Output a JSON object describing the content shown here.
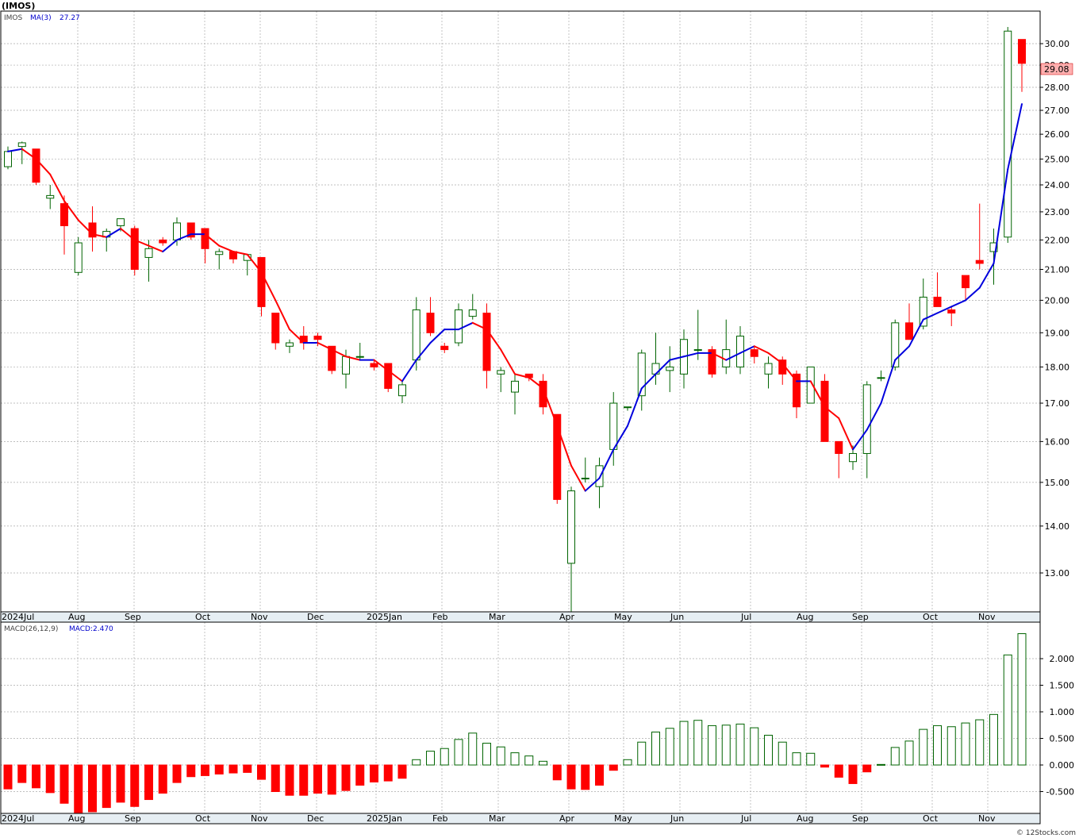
{
  "title": "(IMOS)",
  "legend": {
    "symbol": "IMOS",
    "ma_label": "MA(3)",
    "ma_value": "27.27",
    "macd_params": "MACD(26,12,9)",
    "macd_value": "MACD:2.470"
  },
  "last_price": "29.08",
  "footer": "© 12Stocks.com",
  "colors": {
    "up": "#006400",
    "down": "#ff0000",
    "ma_up": "#0000dd",
    "ma_down": "#ff0000",
    "price_box": "#ffb0b0"
  },
  "month_labels": [
    "2024Jul",
    "Aug",
    "Sep",
    "Oct",
    "Nov",
    "Dec",
    "2025Jan",
    "Feb",
    "Mar",
    "Apr",
    "May",
    "Jun",
    "Jul",
    "Aug",
    "Sep",
    "Oct",
    "Nov"
  ],
  "price_ticks": [
    "13.00",
    "14.00",
    "15.00",
    "16.00",
    "17.00",
    "18.00",
    "19.00",
    "20.00",
    "21.00",
    "22.00",
    "23.00",
    "24.00",
    "25.00",
    "26.00",
    "27.00",
    "28.00",
    "29.00",
    "30.00"
  ],
  "macd_ticks": [
    "-0.500",
    "0.000",
    "0.500",
    "1.000",
    "1.500",
    "2.000"
  ],
  "chart_data": {
    "type": "candlestick",
    "scale": "log",
    "interval": "weekly",
    "ylim": [
      12.2,
      31.2
    ],
    "candles": [
      {
        "o": 24.7,
        "h": 25.5,
        "l": 24.6,
        "c": 25.3
      },
      {
        "o": 25.5,
        "h": 25.7,
        "l": 24.8,
        "c": 25.65
      },
      {
        "o": 25.4,
        "h": 25.4,
        "l": 24.0,
        "c": 24.1
      },
      {
        "o": 23.5,
        "h": 24.0,
        "l": 23.1,
        "c": 23.6
      },
      {
        "o": 23.3,
        "h": 23.6,
        "l": 21.5,
        "c": 22.5
      },
      {
        "o": 20.9,
        "h": 22.1,
        "l": 20.8,
        "c": 21.9
      },
      {
        "o": 22.6,
        "h": 23.2,
        "l": 21.6,
        "c": 22.1
      },
      {
        "o": 22.1,
        "h": 22.4,
        "l": 21.6,
        "c": 22.3
      },
      {
        "o": 22.5,
        "h": 22.75,
        "l": 22.3,
        "c": 22.75
      },
      {
        "o": 22.4,
        "h": 22.5,
        "l": 20.8,
        "c": 21.0
      },
      {
        "o": 21.4,
        "h": 22.0,
        "l": 20.6,
        "c": 21.7
      },
      {
        "o": 22.0,
        "h": 22.1,
        "l": 21.8,
        "c": 21.9
      },
      {
        "o": 22.0,
        "h": 22.8,
        "l": 21.8,
        "c": 22.6
      },
      {
        "o": 22.6,
        "h": 22.6,
        "l": 22.0,
        "c": 22.1
      },
      {
        "o": 22.4,
        "h": 22.4,
        "l": 21.2,
        "c": 21.7
      },
      {
        "o": 21.5,
        "h": 21.7,
        "l": 21.0,
        "c": 21.6
      },
      {
        "o": 21.6,
        "h": 21.6,
        "l": 21.2,
        "c": 21.35
      },
      {
        "o": 21.3,
        "h": 21.5,
        "l": 20.8,
        "c": 21.5
      },
      {
        "o": 21.4,
        "h": 21.4,
        "l": 19.5,
        "c": 19.8
      },
      {
        "o": 19.6,
        "h": 19.6,
        "l": 18.5,
        "c": 18.7
      },
      {
        "o": 18.6,
        "h": 18.8,
        "l": 18.4,
        "c": 18.7
      },
      {
        "o": 18.9,
        "h": 19.2,
        "l": 18.5,
        "c": 18.7
      },
      {
        "o": 18.9,
        "h": 19.0,
        "l": 18.6,
        "c": 18.8
      },
      {
        "o": 18.6,
        "h": 18.6,
        "l": 17.8,
        "c": 17.9
      },
      {
        "o": 17.8,
        "h": 18.5,
        "l": 17.4,
        "c": 18.3
      },
      {
        "o": 18.3,
        "h": 18.7,
        "l": 18.2,
        "c": 18.3
      },
      {
        "o": 18.1,
        "h": 18.2,
        "l": 17.9,
        "c": 18.0
      },
      {
        "o": 18.1,
        "h": 18.1,
        "l": 17.3,
        "c": 17.4
      },
      {
        "o": 17.2,
        "h": 17.6,
        "l": 17.0,
        "c": 17.5
      },
      {
        "o": 18.2,
        "h": 20.1,
        "l": 17.9,
        "c": 19.7
      },
      {
        "o": 19.6,
        "h": 20.1,
        "l": 18.9,
        "c": 19.0
      },
      {
        "o": 18.6,
        "h": 18.7,
        "l": 18.4,
        "c": 18.5
      },
      {
        "o": 18.7,
        "h": 19.9,
        "l": 18.6,
        "c": 19.7
      },
      {
        "o": 19.5,
        "h": 20.2,
        "l": 19.4,
        "c": 19.7
      },
      {
        "o": 19.6,
        "h": 19.9,
        "l": 17.4,
        "c": 17.9
      },
      {
        "o": 17.8,
        "h": 18.0,
        "l": 17.3,
        "c": 17.9
      },
      {
        "o": 17.3,
        "h": 17.8,
        "l": 16.7,
        "c": 17.6
      },
      {
        "o": 17.8,
        "h": 17.8,
        "l": 17.6,
        "c": 17.7
      },
      {
        "o": 17.6,
        "h": 17.8,
        "l": 16.7,
        "c": 16.9
      },
      {
        "o": 16.7,
        "h": 16.7,
        "l": 14.5,
        "c": 14.6
      },
      {
        "o": 13.2,
        "h": 14.9,
        "l": 12.2,
        "c": 14.8
      },
      {
        "o": 15.1,
        "h": 15.6,
        "l": 15.0,
        "c": 15.1
      },
      {
        "o": 14.9,
        "h": 15.6,
        "l": 14.4,
        "c": 15.4
      },
      {
        "o": 15.8,
        "h": 17.3,
        "l": 15.4,
        "c": 17.0
      },
      {
        "o": 16.9,
        "h": 16.9,
        "l": 16.8,
        "c": 16.9
      },
      {
        "o": 17.2,
        "h": 18.5,
        "l": 16.8,
        "c": 18.4
      },
      {
        "o": 17.8,
        "h": 19.0,
        "l": 17.5,
        "c": 18.1
      },
      {
        "o": 17.9,
        "h": 18.6,
        "l": 17.3,
        "c": 18.0
      },
      {
        "o": 17.8,
        "h": 19.1,
        "l": 17.4,
        "c": 18.8
      },
      {
        "o": 18.5,
        "h": 19.7,
        "l": 18.2,
        "c": 18.5
      },
      {
        "o": 18.5,
        "h": 18.6,
        "l": 17.7,
        "c": 17.8
      },
      {
        "o": 18.0,
        "h": 19.4,
        "l": 17.8,
        "c": 18.5
      },
      {
        "o": 18.0,
        "h": 19.2,
        "l": 17.8,
        "c": 18.9
      },
      {
        "o": 18.5,
        "h": 18.6,
        "l": 18.1,
        "c": 18.3
      },
      {
        "o": 17.8,
        "h": 18.3,
        "l": 17.4,
        "c": 18.1
      },
      {
        "o": 18.2,
        "h": 18.3,
        "l": 17.5,
        "c": 17.8
      },
      {
        "o": 17.8,
        "h": 17.9,
        "l": 16.6,
        "c": 16.9
      },
      {
        "o": 17.0,
        "h": 18.0,
        "l": 17.0,
        "c": 18.0
      },
      {
        "o": 17.6,
        "h": 17.8,
        "l": 16.0,
        "c": 16.0
      },
      {
        "o": 16.0,
        "h": 16.0,
        "l": 15.1,
        "c": 15.7
      },
      {
        "o": 15.5,
        "h": 15.9,
        "l": 15.3,
        "c": 15.7
      },
      {
        "o": 15.7,
        "h": 17.6,
        "l": 15.1,
        "c": 17.5
      },
      {
        "o": 17.7,
        "h": 17.9,
        "l": 17.6,
        "c": 17.7
      },
      {
        "o": 18.0,
        "h": 19.4,
        "l": 17.9,
        "c": 19.3
      },
      {
        "o": 19.3,
        "h": 19.9,
        "l": 18.8,
        "c": 18.8
      },
      {
        "o": 19.2,
        "h": 20.7,
        "l": 19.1,
        "c": 20.1
      },
      {
        "o": 20.1,
        "h": 20.9,
        "l": 19.8,
        "c": 19.8
      },
      {
        "o": 19.7,
        "h": 19.8,
        "l": 19.2,
        "c": 19.6
      },
      {
        "o": 20.8,
        "h": 20.8,
        "l": 20.0,
        "c": 20.4
      },
      {
        "o": 21.3,
        "h": 23.3,
        "l": 21.0,
        "c": 21.2
      },
      {
        "o": 21.6,
        "h": 22.4,
        "l": 20.5,
        "c": 21.9
      },
      {
        "o": 22.1,
        "h": 30.8,
        "l": 21.9,
        "c": 30.6
      },
      {
        "o": 30.2,
        "h": 30.2,
        "l": 27.8,
        "c": 29.08
      }
    ],
    "ma3": [
      25.3,
      25.4,
      25.0,
      24.4,
      23.4,
      22.7,
      22.2,
      22.1,
      22.4,
      22.0,
      21.8,
      21.6,
      22.0,
      22.2,
      22.2,
      21.8,
      21.6,
      21.5,
      20.9,
      20.0,
      19.1,
      18.7,
      18.7,
      18.5,
      18.3,
      18.2,
      18.2,
      17.9,
      17.6,
      18.2,
      18.7,
      19.1,
      19.1,
      19.3,
      19.1,
      18.5,
      17.8,
      17.7,
      17.4,
      16.4,
      15.4,
      14.8,
      15.1,
      15.8,
      16.4,
      17.4,
      17.8,
      18.2,
      18.3,
      18.4,
      18.4,
      18.2,
      18.4,
      18.6,
      18.4,
      18.1,
      17.6,
      17.6,
      16.9,
      16.6,
      15.8,
      16.3,
      17.0,
      18.2,
      18.6,
      19.4,
      19.6,
      19.8,
      20.0,
      20.4,
      21.2,
      24.6,
      27.27
    ],
    "macd_hist": [
      -0.45,
      -0.33,
      -0.43,
      -0.52,
      -0.72,
      -0.92,
      -0.88,
      -0.8,
      -0.7,
      -0.78,
      -0.65,
      -0.53,
      -0.33,
      -0.22,
      -0.2,
      -0.17,
      -0.15,
      -0.14,
      -0.27,
      -0.5,
      -0.57,
      -0.57,
      -0.53,
      -0.55,
      -0.48,
      -0.38,
      -0.32,
      -0.3,
      -0.25,
      0.1,
      0.26,
      0.31,
      0.48,
      0.6,
      0.41,
      0.34,
      0.23,
      0.17,
      0.07,
      -0.28,
      -0.45,
      -0.46,
      -0.38,
      -0.1,
      0.1,
      0.43,
      0.62,
      0.69,
      0.82,
      0.84,
      0.74,
      0.75,
      0.77,
      0.7,
      0.56,
      0.43,
      0.23,
      0.22,
      -0.04,
      -0.23,
      -0.35,
      -0.13,
      0.01,
      0.33,
      0.45,
      0.67,
      0.74,
      0.72,
      0.79,
      0.85,
      0.95,
      2.07,
      2.47
    ],
    "x_month_labels": [
      "2024Jul",
      "Aug",
      "Sep",
      "Oct",
      "Nov",
      "Dec",
      "2025Jan",
      "Feb",
      "Mar",
      "Apr",
      "May",
      "Jun",
      "Jul",
      "Aug",
      "Sep",
      "Oct",
      "Nov"
    ]
  }
}
